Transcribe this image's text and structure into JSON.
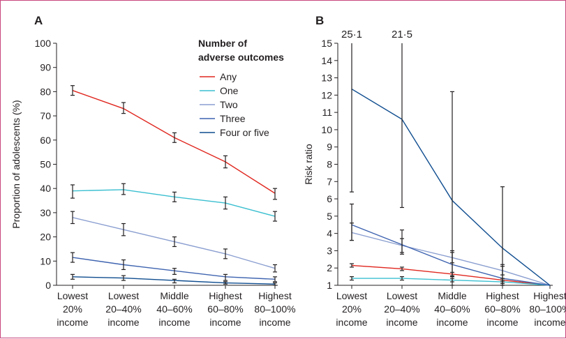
{
  "legend": {
    "title_line1": "Number of",
    "title_line2": "adverse outcomes",
    "items": [
      {
        "label": "Any",
        "color": "#e0271f"
      },
      {
        "label": "One",
        "color": "#3bbfd0"
      },
      {
        "label": "Two",
        "color": "#8a9ed0"
      },
      {
        "label": "Three",
        "color": "#3f64b0"
      },
      {
        "label": "Four or five",
        "color": "#0f4d8f"
      }
    ]
  },
  "chart_data": [
    {
      "panel": "A",
      "type": "line",
      "ylabel": "Proportion of adolescents (%)",
      "ylim": [
        0,
        100
      ],
      "yticks": [
        0,
        10,
        20,
        30,
        40,
        50,
        60,
        70,
        80,
        90,
        100
      ],
      "categories": [
        [
          "Lowest",
          "20%",
          "income"
        ],
        [
          "Lowest",
          "20–40%",
          "income"
        ],
        [
          "Middle",
          "40–60%",
          "income"
        ],
        [
          "Highest",
          "60–80%",
          "income"
        ],
        [
          "Highest",
          "80–100%",
          "income"
        ]
      ],
      "series": [
        {
          "name": "Any",
          "color": "#e0271f",
          "values": [
            80.5,
            73,
            61,
            51,
            38
          ],
          "lower": [
            78.5,
            71,
            59,
            48.5,
            35.5
          ],
          "upper": [
            82.5,
            75.5,
            63,
            53.5,
            40
          ]
        },
        {
          "name": "One",
          "color": "#3bbfd0",
          "values": [
            39,
            39.5,
            36.5,
            34,
            28.5
          ],
          "lower": [
            36,
            37.5,
            34.5,
            31.5,
            26.5
          ],
          "upper": [
            41.5,
            42,
            38.5,
            36.5,
            30.5
          ]
        },
        {
          "name": "Two",
          "color": "#8a9ed0",
          "values": [
            28,
            23,
            18,
            13,
            7
          ],
          "lower": [
            25.5,
            20.5,
            16,
            11,
            5.5
          ],
          "upper": [
            30.5,
            25.5,
            20,
            15,
            8.5
          ]
        },
        {
          "name": "Three",
          "color": "#3f64b0",
          "values": [
            11.5,
            8.5,
            6,
            3.5,
            2.5
          ],
          "lower": [
            9.5,
            6.5,
            4.5,
            2,
            1.5
          ],
          "upper": [
            13.5,
            10.5,
            7,
            4.5,
            3.5
          ]
        },
        {
          "name": "Four or five",
          "color": "#0f4d8f",
          "values": [
            3.5,
            3,
            2,
            1,
            0.5
          ],
          "lower": [
            2.5,
            2,
            1,
            0.5,
            0
          ],
          "upper": [
            4.5,
            4,
            2.5,
            1.5,
            1
          ]
        }
      ]
    },
    {
      "panel": "B",
      "type": "line",
      "ylabel": "Risk ratio",
      "ylim": [
        1,
        15
      ],
      "yticks": [
        1,
        2,
        3,
        4,
        5,
        6,
        7,
        8,
        9,
        10,
        11,
        12,
        13,
        14,
        15
      ],
      "categories": [
        [
          "Lowest",
          "20%",
          "income"
        ],
        [
          "Lowest",
          "20–40%",
          "income"
        ],
        [
          "Middle",
          "40–60%",
          "income"
        ],
        [
          "Highest",
          "60–80%",
          "income"
        ],
        [
          "Highest",
          "80–100%",
          "income"
        ]
      ],
      "annotations": [
        {
          "category_index": 0,
          "text": "25·1"
        },
        {
          "category_index": 1,
          "text": "21·5"
        }
      ],
      "series": [
        {
          "name": "Any",
          "color": "#e0271f",
          "values": [
            2.15,
            1.95,
            1.65,
            1.3,
            1
          ],
          "lower": [
            2.05,
            1.85,
            1.55,
            1.2,
            null
          ],
          "upper": [
            2.25,
            2.05,
            1.75,
            1.4,
            null
          ]
        },
        {
          "name": "One",
          "color": "#3bbfd0",
          "values": [
            1.4,
            1.4,
            1.3,
            1.2,
            1
          ],
          "lower": [
            1.3,
            1.3,
            1.2,
            1.1,
            null
          ],
          "upper": [
            1.5,
            1.5,
            1.4,
            1.3,
            null
          ]
        },
        {
          "name": "Two",
          "color": "#8a9ed0",
          "values": [
            4.05,
            3.3,
            2.6,
            1.85,
            1
          ],
          "lower": [
            3.6,
            2.9,
            2.3,
            1.6,
            null
          ],
          "upper": [
            4.6,
            3.7,
            2.9,
            2.1,
            null
          ]
        },
        {
          "name": "Three",
          "color": "#3f64b0",
          "values": [
            4.5,
            3.35,
            2.2,
            1.4,
            1
          ],
          "lower": [
            3.6,
            2.8,
            1.5,
            1,
            null
          ],
          "upper": [
            5.7,
            4.2,
            3,
            2.2,
            null
          ]
        },
        {
          "name": "Four or five",
          "color": "#0f4d8f",
          "values": [
            12.35,
            10.6,
            5.9,
            3.15,
            1
          ],
          "lower": [
            6.4,
            5.5,
            1,
            1,
            null
          ],
          "upper": [
            25.1,
            21.5,
            12.2,
            6.7,
            null
          ]
        }
      ]
    }
  ]
}
